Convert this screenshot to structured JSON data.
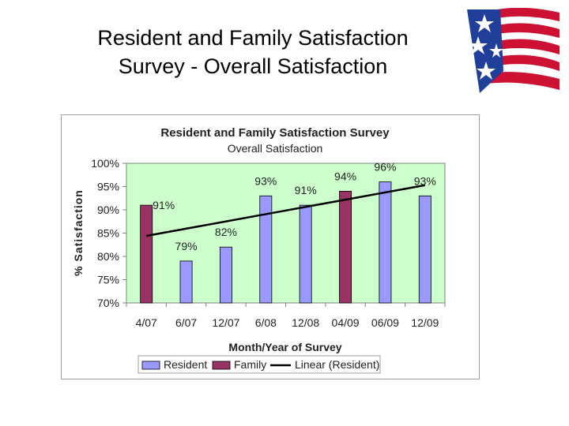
{
  "slide": {
    "title_line1": "Resident and Family Satisfaction",
    "title_line2": "Survey - Overall Satisfaction",
    "logo_icon": "us-flag-stars-stripes-icon"
  },
  "colors": {
    "resident": "#9999ff",
    "family": "#993366",
    "trend": "#000000",
    "plot_bg": "#ccffcc",
    "flag_red": "#cc1133",
    "flag_blue": "#1f3f9a"
  },
  "chart_data": {
    "type": "bar",
    "title": "Resident and Family Satisfaction Survey",
    "subtitle": "Overall Satisfaction",
    "xlabel": "Month/Year of Survey",
    "ylabel": "% Satisfaction",
    "ylim": [
      70,
      100
    ],
    "yticks": [
      70,
      75,
      80,
      85,
      90,
      95,
      100
    ],
    "ytick_labels": [
      "70%",
      "75%",
      "80%",
      "85%",
      "90%",
      "95%",
      "100%"
    ],
    "categories": [
      "4/07",
      "6/07",
      "12/07",
      "6/08",
      "12/08",
      "04/09",
      "06/09",
      "12/09"
    ],
    "values": [
      91,
      79,
      82,
      93,
      91,
      94,
      96,
      93
    ],
    "value_labels": [
      "91%",
      "79%",
      "82%",
      "93%",
      "91%",
      "94%",
      "96%",
      "93%"
    ],
    "series_of_bar": [
      "Family",
      "Resident",
      "Resident",
      "Resident",
      "Resident",
      "Family",
      "Resident",
      "Resident"
    ],
    "series": [
      {
        "name": "Resident"
      },
      {
        "name": "Family"
      }
    ],
    "trendline": {
      "name": "Linear (Resident)",
      "start": 84.4,
      "end": 95.3
    },
    "legend": [
      "Resident",
      "Family",
      "Linear (Resident)"
    ],
    "legend_position": "bottom",
    "grid": false
  }
}
